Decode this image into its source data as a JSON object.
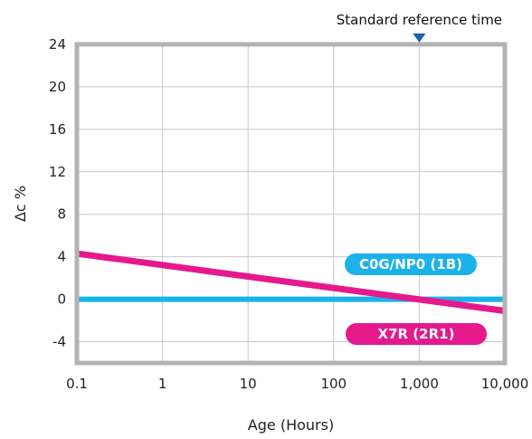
{
  "chart_data": {
    "type": "line",
    "xlabel": "Age (Hours)",
    "ylabel": "Δc %",
    "xscale": "log",
    "xlim": [
      0.1,
      10000
    ],
    "ylim": [
      -6,
      24
    ],
    "x_ticks": [
      0.1,
      1,
      10,
      100,
      1000,
      10000
    ],
    "x_tick_labels": [
      "0.1",
      "1",
      "10",
      "100",
      "1,000",
      "10,000"
    ],
    "y_ticks": [
      -4,
      0,
      4,
      8,
      12,
      16,
      20,
      24
    ],
    "y_tick_labels": [
      "-4",
      "0",
      "4",
      "8",
      "12",
      "16",
      "20",
      "24"
    ],
    "grid": true,
    "series": [
      {
        "name": "C0G/NP0 (1B)",
        "color": "#1ab2e8",
        "x": [
          0.1,
          10000
        ],
        "y": [
          0,
          0
        ]
      },
      {
        "name": "X7R (2R1)",
        "color": "#e5198c",
        "x": [
          0.1,
          10000
        ],
        "y": [
          4.3,
          -1.1
        ]
      }
    ],
    "annotation": {
      "text": "Standard reference time",
      "x": 1000,
      "marker": "down-triangle",
      "color": "#1f5fa8"
    }
  }
}
